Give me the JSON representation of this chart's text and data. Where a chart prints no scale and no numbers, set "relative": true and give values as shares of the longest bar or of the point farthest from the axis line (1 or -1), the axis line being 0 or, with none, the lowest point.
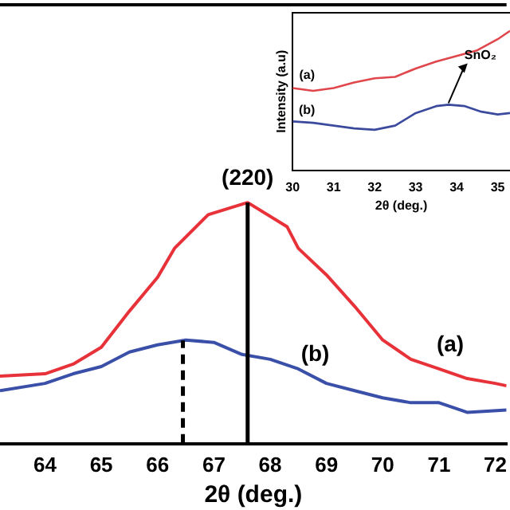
{
  "chart_data": [
    {
      "type": "line",
      "xlabel": "2θ (deg.)",
      "relative": true,
      "xlim": [
        63.2,
        72.2
      ],
      "xticks": [
        64,
        65,
        66,
        67,
        68,
        69,
        70,
        71,
        72
      ],
      "legend": false,
      "grid": false,
      "marker": "none",
      "tick_labels": "x",
      "series": [
        {
          "color": "#e8323a",
          "x": [
            63.2,
            64,
            64.5,
            65,
            65.5,
            66,
            66.3,
            66.9,
            67.6,
            68.3,
            68.5,
            69,
            69.5,
            70,
            70.5,
            71,
            71.5,
            72,
            72.2
          ],
          "values": [
            0.28,
            0.29,
            0.33,
            0.4,
            0.55,
            0.69,
            0.81,
            0.95,
            1,
            0.9,
            0.81,
            0.7,
            0.57,
            0.43,
            0.35,
            0.31,
            0.27,
            0.25,
            0.24
          ]
        },
        {
          "color": "#3a4fa8",
          "x": [
            63.2,
            64,
            64.5,
            65,
            65.5,
            66,
            66.5,
            67,
            67.5,
            68,
            68.5,
            69,
            69.5,
            70,
            70.5,
            71,
            71.5,
            72.2
          ],
          "values": [
            0.22,
            0.25,
            0.29,
            0.32,
            0.38,
            0.41,
            0.43,
            0.42,
            0.37,
            0.35,
            0.31,
            0.25,
            0.22,
            0.19,
            0.17,
            0.17,
            0.13,
            0.14
          ]
        }
      ],
      "ref_lines": [
        {
          "axis": "x",
          "value": 67.6,
          "color": "#000000",
          "line_style": "solid"
        },
        {
          "axis": "x",
          "value": 66.45,
          "color": "#000000",
          "line_style": "dashed"
        }
      ],
      "annotations": [
        {
          "text": "(a)",
          "x": 71.2,
          "y": 0.31
        },
        {
          "text": "(b)",
          "x": 68.8,
          "y": 0.27
        },
        {
          "text": "(220)",
          "x": 67.6,
          "y": 1
        }
      ]
    },
    {
      "type": "line",
      "xlabel": "2θ (deg.)",
      "ylabel": "Intensity (a.u)",
      "relative": true,
      "xlim": [
        30,
        35.3
      ],
      "xticks": [
        30,
        31,
        32,
        33,
        34,
        35
      ],
      "legend": false,
      "grid": false,
      "marker": "none",
      "tick_labels": "x",
      "series": [
        {
          "color": "#e0474c",
          "x": [
            30,
            30.5,
            31,
            31.5,
            32,
            32.5,
            33,
            33.5,
            34,
            34.5,
            35,
            35.3
          ],
          "values": [
            0.59,
            0.57,
            0.59,
            0.63,
            0.66,
            0.67,
            0.73,
            0.78,
            0.82,
            0.86,
            0.94,
            1
          ]
        },
        {
          "color": "#3b4a9c",
          "x": [
            30,
            30.5,
            31,
            31.5,
            32,
            32.5,
            33,
            33.5,
            33.8,
            34.2,
            34.6,
            35,
            35.3
          ],
          "values": [
            0.35,
            0.34,
            0.32,
            0.3,
            0.29,
            0.32,
            0.41,
            0.46,
            0.47,
            0.46,
            0.42,
            0.4,
            0.41
          ]
        }
      ],
      "annotations": [
        {
          "text": "(a)",
          "x": 30.35,
          "y": 0.6
        },
        {
          "text": "(b)",
          "x": 30.35,
          "y": 0.35
        },
        {
          "text": "SnO₂",
          "x": 33.8,
          "y": 0.47
        }
      ]
    }
  ]
}
